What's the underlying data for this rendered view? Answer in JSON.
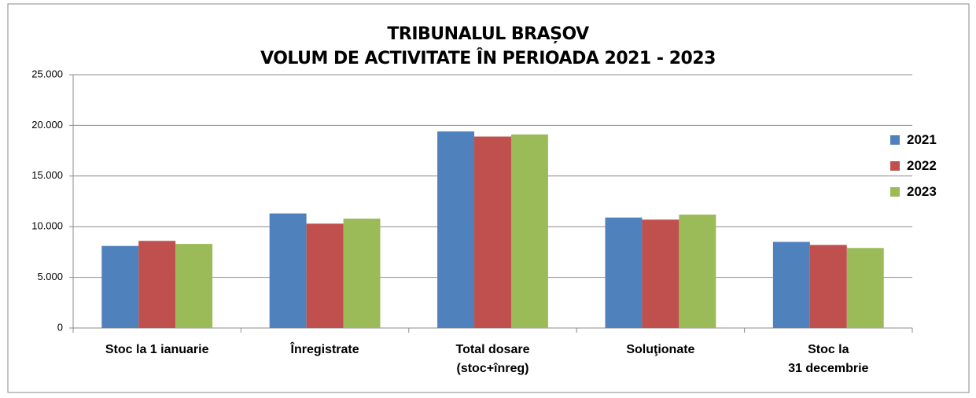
{
  "chart_data": {
    "type": "bar",
    "title": "TRIBUNALUL BRAȘOV\nVOLUM DE ACTIVITATE ÎN PERIOADA 2021  - 2023",
    "categories": [
      "Stoc la 1 ianuarie",
      "Înregistrate",
      "Total dosare\n(stoc+înreg)",
      "Soluţionate",
      "Stoc la\n31 decembrie"
    ],
    "series": [
      {
        "name": "2021",
        "color": "#4f81bd",
        "values": [
          8100,
          11300,
          19400,
          10900,
          8500
        ]
      },
      {
        "name": "2022",
        "color": "#c0504d",
        "values": [
          8600,
          10300,
          18900,
          10700,
          8200
        ]
      },
      {
        "name": "2023",
        "color": "#9bbb59",
        "values": [
          8300,
          10800,
          19100,
          11200,
          7900
        ]
      }
    ],
    "ylim": [
      0,
      25000
    ],
    "yticks": [
      0,
      {
        "value": 5000,
        "label": "5.000"
      },
      {
        "value": 10000,
        "label": "10.000"
      },
      {
        "value": 15000,
        "label": "15.000"
      },
      {
        "value": 20000,
        "label": "20.000"
      },
      {
        "value": 25000,
        "label": "25.000"
      }
    ],
    "grid": true,
    "legend": "right"
  }
}
